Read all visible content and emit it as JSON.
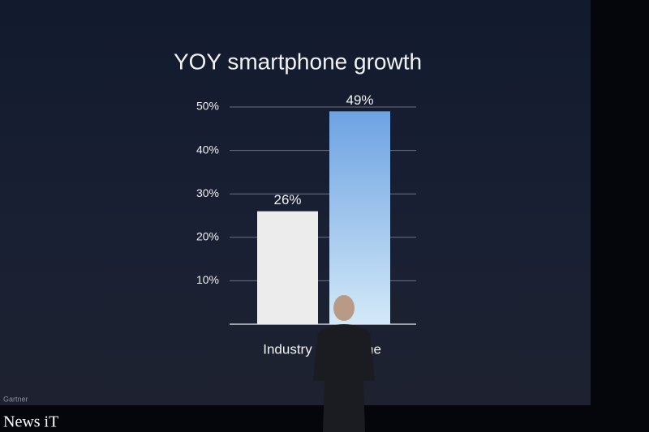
{
  "chart_data": {
    "type": "bar",
    "title": "YOY smartphone growth",
    "categories": [
      "Industry",
      "iPhone"
    ],
    "values": [
      26,
      49
    ],
    "value_labels": [
      "26%",
      "49%"
    ],
    "colors": [
      "#ececec",
      "#8dbdea"
    ],
    "ylim": [
      0,
      50
    ],
    "yticks": [
      {
        "value": 10,
        "label": "10%"
      },
      {
        "value": 20,
        "label": "20%"
      },
      {
        "value": 30,
        "label": "30%"
      },
      {
        "value": 40,
        "label": "40%"
      },
      {
        "value": 50,
        "label": "50%"
      }
    ],
    "grid": true,
    "source": "Gartner",
    "watermark": "News iT"
  }
}
